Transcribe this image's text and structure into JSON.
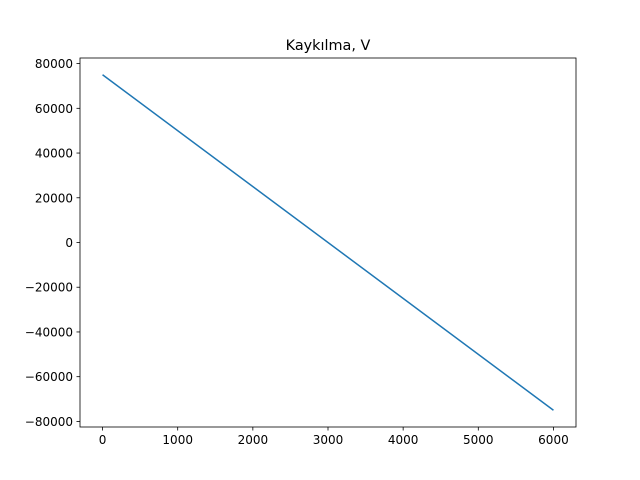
{
  "chart_data": {
    "type": "line",
    "title": "Kaykılma, V",
    "xlabel": "",
    "ylabel": "",
    "xlim": [
      -300,
      6300
    ],
    "ylim": [
      -82500,
      82500
    ],
    "x_ticks": [
      0,
      1000,
      2000,
      3000,
      4000,
      5000,
      6000
    ],
    "y_ticks": [
      -80000,
      -60000,
      -40000,
      -20000,
      0,
      20000,
      40000,
      60000,
      80000
    ],
    "grid": false,
    "legend": "none",
    "series": [
      {
        "color": "#1f77b4",
        "x": [
          0,
          6000
        ],
        "y": [
          75000,
          -75000
        ]
      }
    ]
  }
}
